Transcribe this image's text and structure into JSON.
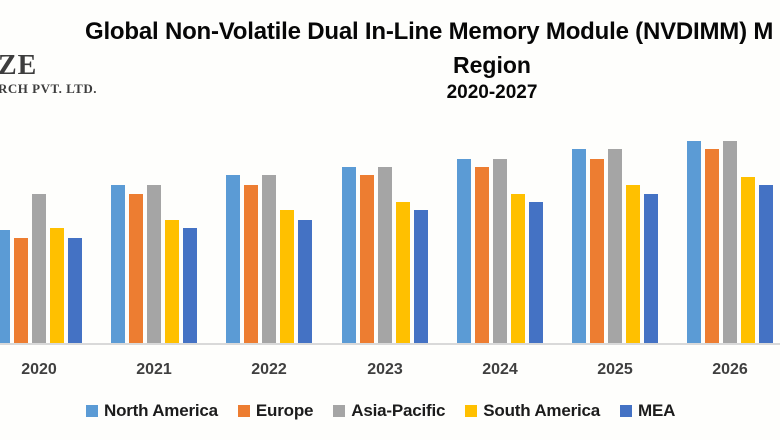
{
  "logo": {
    "line1": "ZE",
    "line2": "RCH PVT. LTD."
  },
  "title": {
    "line1": "Global Non-Volatile Dual In-Line Memory Module (NVDIMM) M",
    "line2": "Region",
    "line3": "2020-2027"
  },
  "chart_data": {
    "type": "bar",
    "title_lines": [
      "Global Non-Volatile Dual In-Line Memory Module (NVDIMM) M",
      "Region",
      "2020-2027"
    ],
    "categories": [
      "2020",
      "2021",
      "2022",
      "2023",
      "2024",
      "2025",
      "2026"
    ],
    "series": [
      {
        "name": "North America",
        "color": "#5B9BD5",
        "values": [
          56,
          78,
          83,
          87,
          91,
          96,
          100
        ]
      },
      {
        "name": "Europe",
        "color": "#ED7D31",
        "values": [
          52,
          74,
          78,
          83,
          87,
          91,
          96
        ]
      },
      {
        "name": "Asia-Pacific",
        "color": "#A5A5A5",
        "values": [
          74,
          78,
          83,
          87,
          91,
          96,
          100
        ]
      },
      {
        "name": "South America",
        "color": "#FFC000",
        "values": [
          57,
          61,
          66,
          70,
          74,
          78,
          82
        ]
      },
      {
        "name": "MEA",
        "color": "#4472C4",
        "values": [
          52,
          57,
          61,
          66,
          70,
          74,
          78
        ]
      }
    ],
    "value_axis_shown": false,
    "values_unit": "relative units estimated from bar heights (tallest bar = 100)",
    "ylim": [
      0,
      100
    ],
    "grid": false,
    "legend_position": "bottom"
  },
  "legend": {
    "items": [
      {
        "label": "North America",
        "color": "#5B9BD5"
      },
      {
        "label": "Europe",
        "color": "#ED7D31"
      },
      {
        "label": "Asia-Pacific",
        "color": "#A5A5A5"
      },
      {
        "label": "South America",
        "color": "#FFC000"
      },
      {
        "label": "MEA",
        "color": "#4472C4"
      }
    ]
  }
}
